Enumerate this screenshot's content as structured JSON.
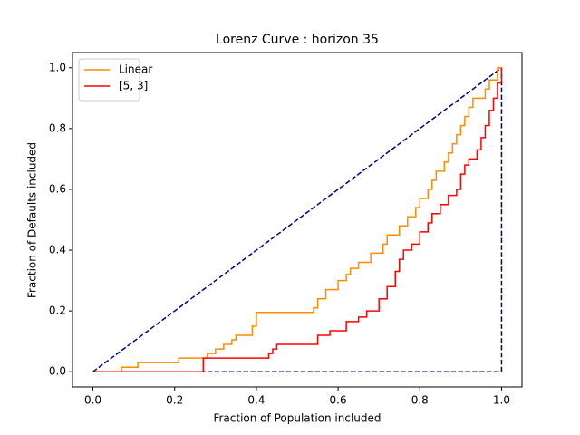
{
  "chart_data": {
    "type": "line",
    "title": "Lorenz Curve : horizon 35",
    "x_label": "Fraction of Population included",
    "y_label": "Fraction of Defaults included",
    "xlim": [
      -0.05,
      1.05
    ],
    "ylim": [
      -0.05,
      1.05
    ],
    "xticks": [
      {
        "value": 0,
        "label": "0.0"
      },
      0.2,
      0.4,
      0.6,
      0.8,
      {
        "value": 1,
        "label": "1.0"
      }
    ],
    "yticks": [
      {
        "value": 0,
        "label": "0.0"
      },
      0.2,
      0.4,
      0.6,
      0.8,
      {
        "value": 1,
        "label": "1.0"
      }
    ],
    "legend": "upper left",
    "series": [
      {
        "name": "Linear",
        "color": "#ff8c00",
        "x": [
          0,
          0.07,
          0.07,
          0.11,
          0.11,
          0.21,
          0.21,
          0.28,
          0.28,
          0.3,
          0.3,
          0.32,
          0.32,
          0.34,
          0.34,
          0.35,
          0.35,
          0.39,
          0.39,
          0.4,
          0.4,
          0.54,
          0.54,
          0.55,
          0.55,
          0.57,
          0.57,
          0.6,
          0.6,
          0.62,
          0.62,
          0.63,
          0.63,
          0.65,
          0.65,
          0.68,
          0.68,
          0.71,
          0.71,
          0.72,
          0.72,
          0.75,
          0.75,
          0.77,
          0.77,
          0.79,
          0.79,
          0.8,
          0.8,
          0.82,
          0.82,
          0.83,
          0.83,
          0.84,
          0.84,
          0.86,
          0.86,
          0.87,
          0.87,
          0.88,
          0.88,
          0.89,
          0.89,
          0.9,
          0.9,
          0.91,
          0.91,
          0.92,
          0.92,
          0.93,
          0.93,
          0.96,
          0.96,
          0.97,
          0.97,
          0.99,
          0.99,
          1.0
        ],
        "values": [
          0,
          0,
          0.015,
          0.015,
          0.03,
          0.03,
          0.045,
          0.045,
          0.06,
          0.06,
          0.075,
          0.075,
          0.09,
          0.09,
          0.105,
          0.105,
          0.12,
          0.12,
          0.15,
          0.15,
          0.195,
          0.195,
          0.21,
          0.21,
          0.24,
          0.24,
          0.27,
          0.27,
          0.3,
          0.3,
          0.32,
          0.32,
          0.34,
          0.34,
          0.36,
          0.36,
          0.39,
          0.39,
          0.42,
          0.42,
          0.45,
          0.45,
          0.48,
          0.48,
          0.51,
          0.51,
          0.54,
          0.54,
          0.57,
          0.57,
          0.6,
          0.6,
          0.63,
          0.63,
          0.66,
          0.66,
          0.69,
          0.69,
          0.72,
          0.72,
          0.75,
          0.75,
          0.78,
          0.78,
          0.81,
          0.81,
          0.84,
          0.84,
          0.87,
          0.87,
          0.9,
          0.9,
          0.93,
          0.93,
          0.96,
          0.96,
          1.0,
          1.0
        ]
      },
      {
        "name": "[5, 3]",
        "color": "#ff0000",
        "x": [
          0,
          0.27,
          0.27,
          0.43,
          0.43,
          0.44,
          0.44,
          0.45,
          0.45,
          0.55,
          0.55,
          0.58,
          0.58,
          0.62,
          0.62,
          0.65,
          0.65,
          0.67,
          0.67,
          0.7,
          0.7,
          0.72,
          0.72,
          0.74,
          0.74,
          0.75,
          0.75,
          0.76,
          0.76,
          0.78,
          0.78,
          0.8,
          0.8,
          0.82,
          0.82,
          0.83,
          0.83,
          0.85,
          0.85,
          0.87,
          0.87,
          0.89,
          0.89,
          0.9,
          0.9,
          0.91,
          0.91,
          0.92,
          0.92,
          0.94,
          0.94,
          0.95,
          0.95,
          0.96,
          0.96,
          0.97,
          0.97,
          0.98,
          0.98,
          0.99,
          0.99,
          1.0,
          1.0
        ],
        "values": [
          0,
          0,
          0.045,
          0.045,
          0.06,
          0.06,
          0.075,
          0.075,
          0.09,
          0.09,
          0.12,
          0.12,
          0.135,
          0.135,
          0.165,
          0.165,
          0.18,
          0.18,
          0.2,
          0.2,
          0.24,
          0.24,
          0.28,
          0.28,
          0.33,
          0.33,
          0.37,
          0.37,
          0.4,
          0.4,
          0.42,
          0.42,
          0.46,
          0.46,
          0.49,
          0.49,
          0.52,
          0.52,
          0.55,
          0.55,
          0.58,
          0.58,
          0.6,
          0.6,
          0.65,
          0.65,
          0.68,
          0.68,
          0.7,
          0.7,
          0.73,
          0.73,
          0.77,
          0.77,
          0.81,
          0.81,
          0.86,
          0.86,
          0.9,
          0.9,
          0.95,
          0.95,
          1.0
        ]
      }
    ],
    "reference_lines": {
      "color": "#000080",
      "dashed": true,
      "lines": [
        {
          "x": [
            0,
            1
          ],
          "values": [
            0,
            1
          ]
        },
        {
          "x": [
            0,
            1
          ],
          "values": [
            0,
            0
          ]
        },
        {
          "x": [
            1,
            1
          ],
          "values": [
            0,
            1
          ]
        }
      ]
    }
  }
}
